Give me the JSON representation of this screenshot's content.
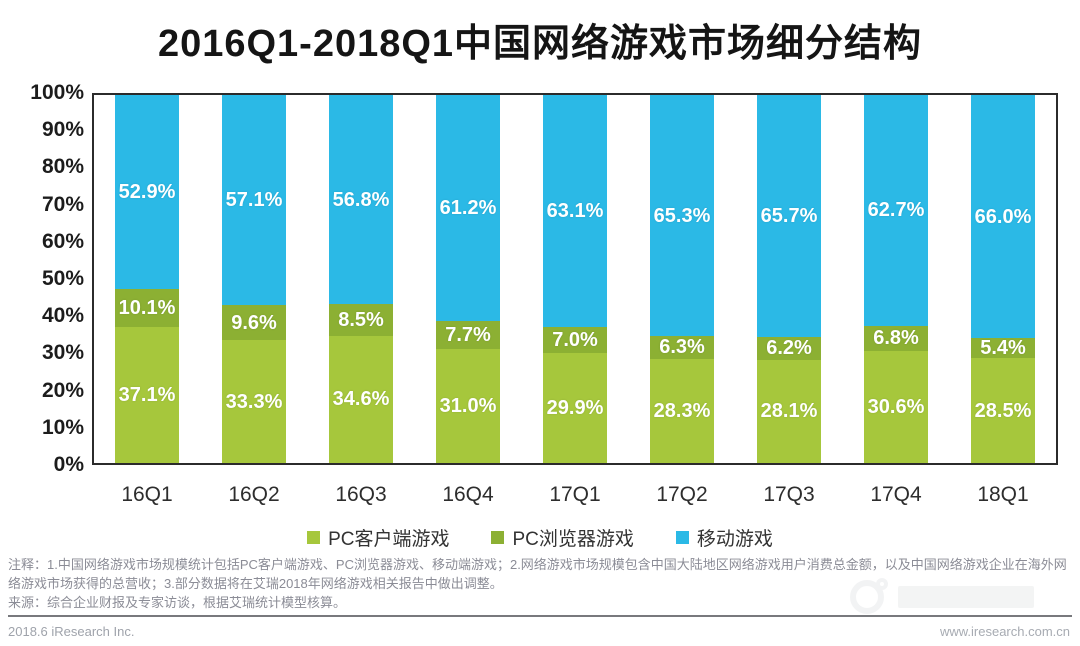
{
  "title": "2016Q1-2018Q1中国网络游戏市场细分结构",
  "chart_data": {
    "type": "bar",
    "stacked": true,
    "title": "2016Q1-2018Q1中国网络游戏市场细分结构",
    "categories": [
      "16Q1",
      "16Q2",
      "16Q3",
      "16Q4",
      "17Q1",
      "17Q2",
      "17Q3",
      "17Q4",
      "18Q1"
    ],
    "series": [
      {
        "name": "PC客户端游戏",
        "color": "#a6c73c",
        "values": [
          37.1,
          33.3,
          34.6,
          31.0,
          29.9,
          28.3,
          28.1,
          30.6,
          28.5
        ],
        "labels": [
          "37.1%",
          "33.3%",
          "34.6%",
          "31.0%",
          "29.9%",
          "28.3%",
          "28.1%",
          "30.6%",
          "28.5%"
        ]
      },
      {
        "name": "PC浏览器游戏",
        "color": "#8cb033",
        "values": [
          10.1,
          9.6,
          8.5,
          7.7,
          7.0,
          6.3,
          6.2,
          6.8,
          5.4
        ],
        "labels": [
          "10.1%",
          "9.6%",
          "8.5%",
          "7.7%",
          "7.0%",
          "6.3%",
          "6.2%",
          "6.8%",
          "5.4%"
        ]
      },
      {
        "name": "移动游戏",
        "color": "#2bb9e6",
        "values": [
          52.9,
          57.1,
          56.8,
          61.2,
          63.1,
          65.3,
          65.7,
          62.7,
          66.0
        ],
        "labels": [
          "52.9%",
          "57.1%",
          "56.8%",
          "61.2%",
          "63.1%",
          "65.3%",
          "65.7%",
          "62.7%",
          "66.0%"
        ]
      }
    ],
    "xlabel": "",
    "ylabel": "",
    "ylim": [
      0,
      100
    ],
    "ytick_step": 10,
    "ytick_labels": [
      "0%",
      "10%",
      "20%",
      "30%",
      "40%",
      "50%",
      "60%",
      "70%",
      "80%",
      "90%",
      "100%"
    ],
    "grid": false,
    "legend_position": "bottom"
  },
  "notes": {
    "annotation": "注释：1.中国网络游戏市场规模统计包括PC客户端游戏、PC浏览器游戏、移动端游戏；2.网络游戏市场规模包含中国大陆地区网络游戏用户消费总金额，以及中国网络游戏企业在海外网络游戏市场获得的总营收；3.部分数据将在艾瑞2018年网络游戏相关报告中做出调整。",
    "source": "来源：综合企业财报及专家访谈，根据艾瑞统计模型核算。"
  },
  "footer": {
    "left": "2018.6 iResearch Inc.",
    "right": "www.iresearch.com.cn"
  },
  "colors": {
    "pc_client": "#a6c73c",
    "pc_browser": "#8cb033",
    "mobile": "#2bb9e6",
    "axis_text": "#1c1c1c",
    "note_text": "#8b8c96",
    "footer_text": "#9fa3ab",
    "plot_border": "#2b2b2b"
  }
}
